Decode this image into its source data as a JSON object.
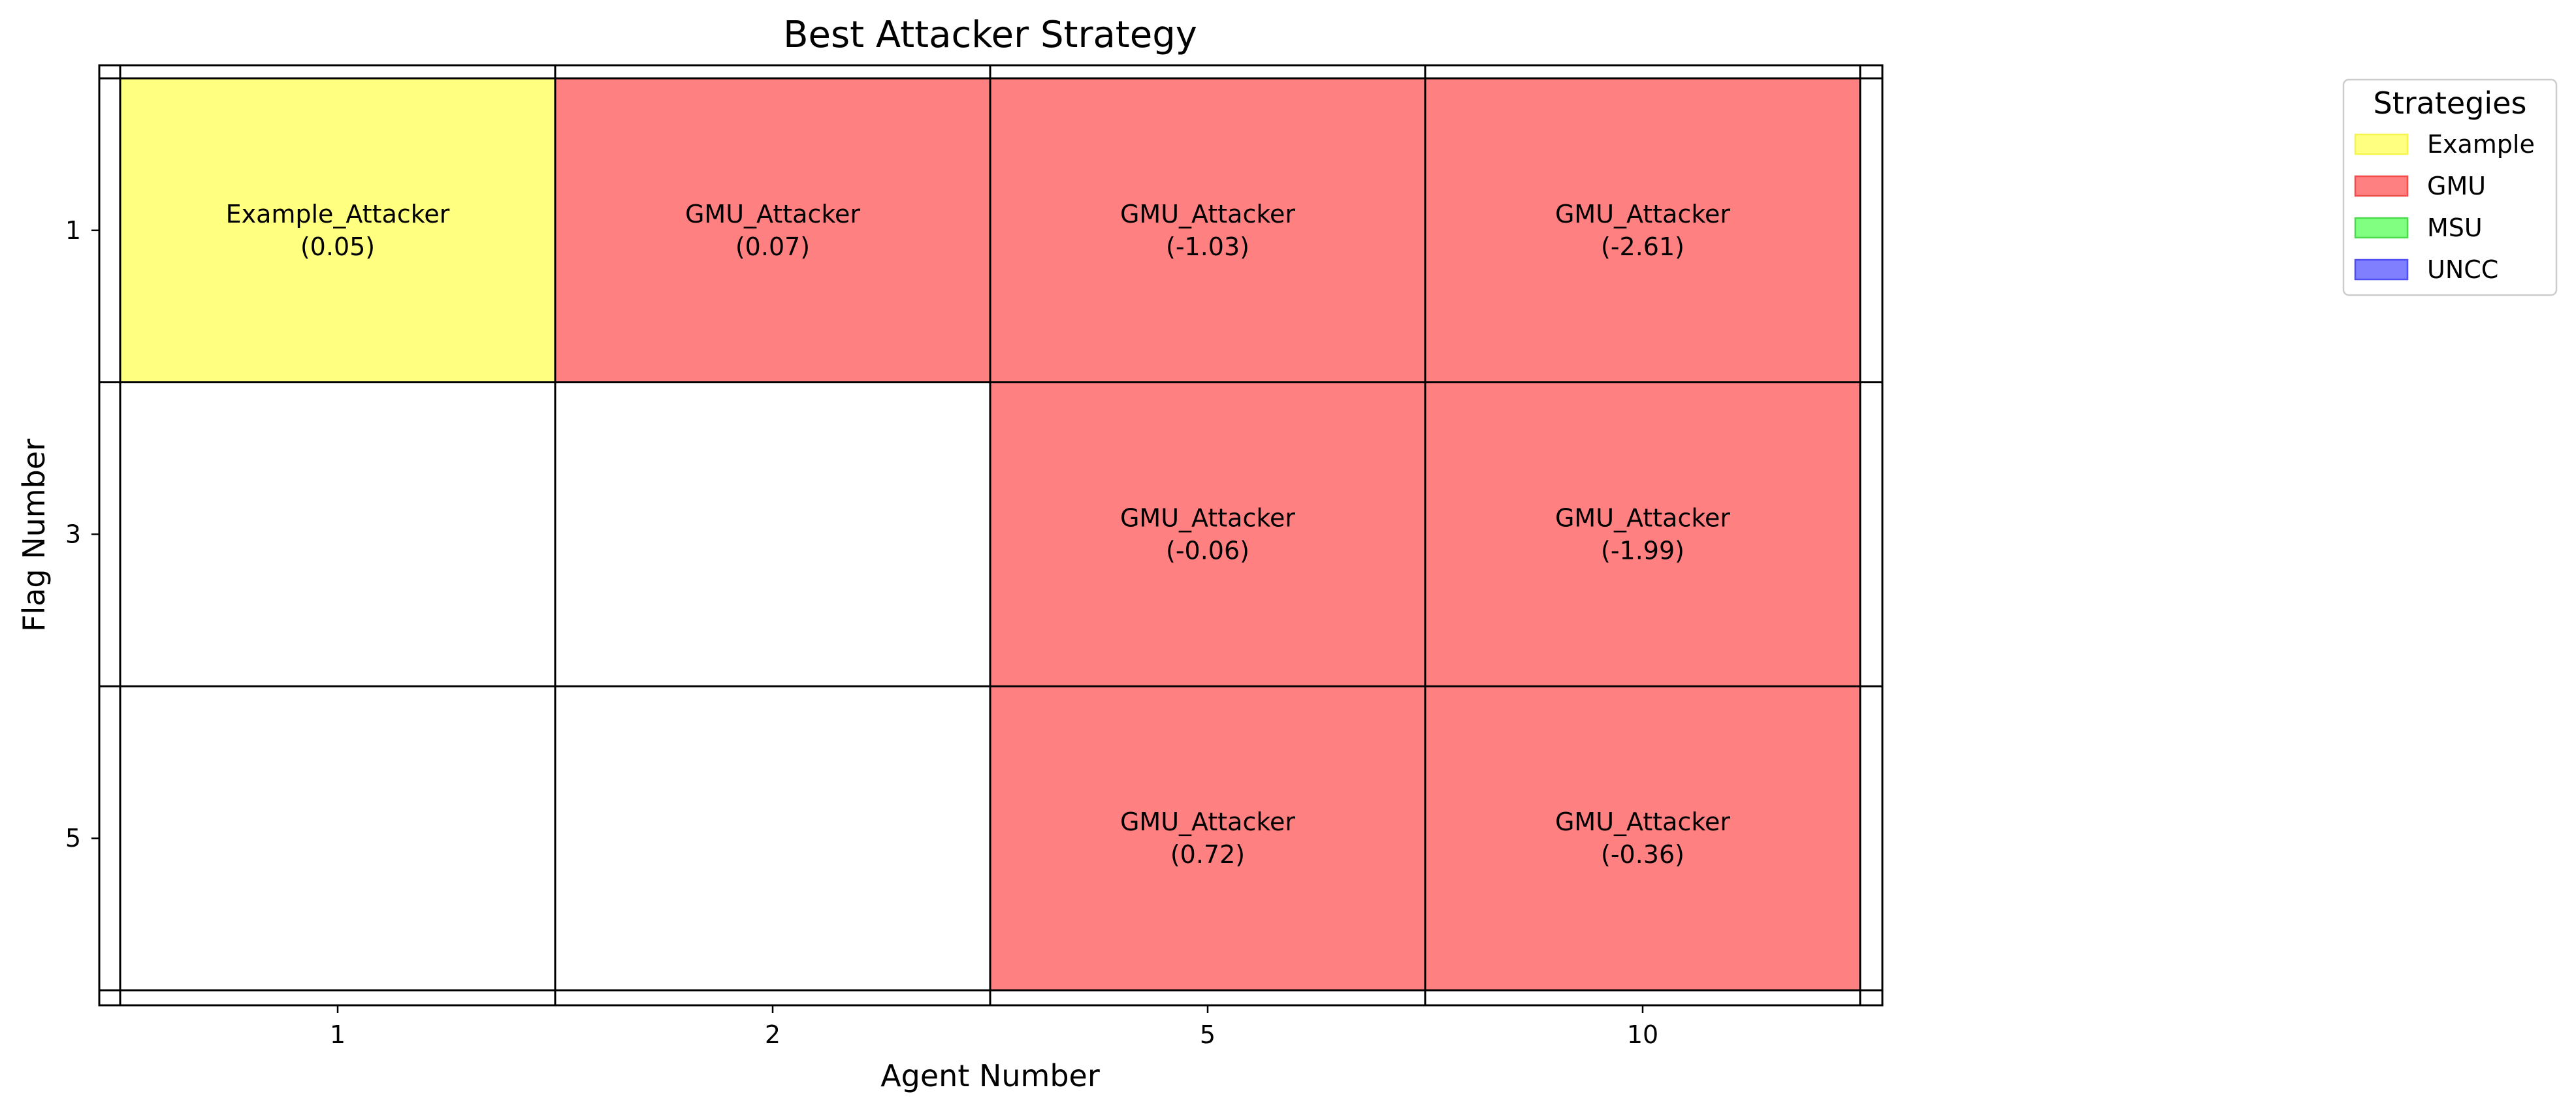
{
  "chart_data": {
    "type": "heatmap",
    "title": "Best Attacker Strategy",
    "xlabel": "Agent Number",
    "ylabel": "Flag Number",
    "x_categories": [
      "1",
      "2",
      "5",
      "10"
    ],
    "y_categories": [
      "1",
      "3",
      "5"
    ],
    "cells": [
      {
        "x": "1",
        "y": "1",
        "strategy": "Example",
        "label": "Example_Attacker",
        "value": "(0.05)"
      },
      {
        "x": "2",
        "y": "1",
        "strategy": "GMU",
        "label": "GMU_Attacker",
        "value": "(0.07)"
      },
      {
        "x": "5",
        "y": "1",
        "strategy": "GMU",
        "label": "GMU_Attacker",
        "value": "(-1.03)"
      },
      {
        "x": "10",
        "y": "1",
        "strategy": "GMU",
        "label": "GMU_Attacker",
        "value": "(-2.61)"
      },
      {
        "x": "5",
        "y": "3",
        "strategy": "GMU",
        "label": "GMU_Attacker",
        "value": "(-0.06)"
      },
      {
        "x": "10",
        "y": "3",
        "strategy": "GMU",
        "label": "GMU_Attacker",
        "value": "(-1.99)"
      },
      {
        "x": "5",
        "y": "5",
        "strategy": "GMU",
        "label": "GMU_Attacker",
        "value": "(0.72)"
      },
      {
        "x": "10",
        "y": "5",
        "strategy": "GMU",
        "label": "GMU_Attacker",
        "value": "(-0.36)"
      }
    ],
    "legend": {
      "title": "Strategies",
      "placement": "outside-right-top",
      "entries": [
        {
          "name": "Example",
          "color": "#ffff80",
          "edge": "#f5f54d"
        },
        {
          "name": "GMU",
          "color": "#ff8080",
          "edge": "#f24d4d"
        },
        {
          "name": "MSU",
          "color": "#80ff80",
          "edge": "#4dd94d"
        },
        {
          "name": "UNCC",
          "color": "#8080ff",
          "edge": "#4d4df2"
        }
      ]
    },
    "empty_color": "#ffffff",
    "grid": true
  }
}
